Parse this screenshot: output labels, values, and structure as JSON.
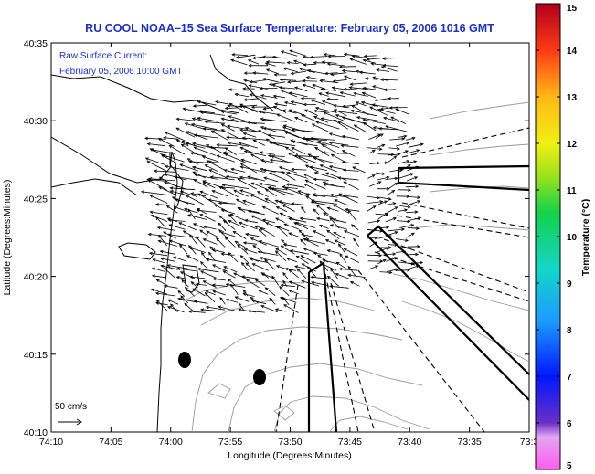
{
  "chart_data": {
    "type": "map",
    "title": "RU COOL  NOAA–15  Sea Surface Temperature:  February 05, 2006 1016 GMT",
    "annotation": [
      "Raw Surface Current:",
      "February 05, 2006 10:00 GMT"
    ],
    "xlabel": "Longitude (Degrees:Minutes)",
    "ylabel": "Latitude (Degrees:Minutes)",
    "x_ticks": [
      "74:10",
      "74:05",
      "74:00",
      "73:55",
      "73:50",
      "73:45",
      "73:40",
      "73:35",
      "73:3"
    ],
    "y_ticks": [
      "40:10",
      "40:15",
      "40:20",
      "40:25",
      "40:30",
      "40:35"
    ],
    "xlim_west_min": [
      70,
      30
    ],
    "ylim_north_min": [
      10,
      35
    ],
    "colorbar": {
      "label": "Temperature (°C)",
      "ticks": [
        "5",
        "6",
        "7",
        "8",
        "9",
        "10",
        "11",
        "12",
        "13",
        "14",
        "15"
      ],
      "range": [
        5,
        15
      ]
    },
    "scale_label": "50 cm/s",
    "colors": {
      "title": "#1a2fd0",
      "coast": "#000000",
      "bathymetry": "#9a9a9a"
    }
  }
}
